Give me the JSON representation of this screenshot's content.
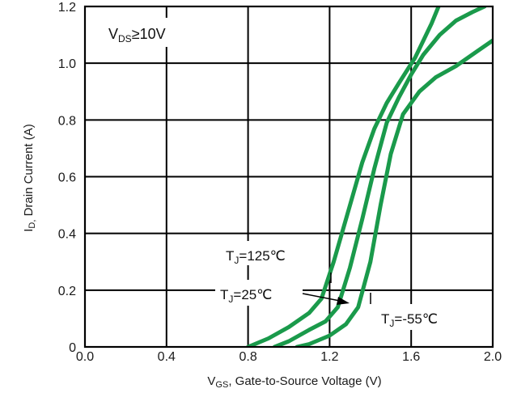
{
  "chart_data": {
    "type": "line",
    "condition": {
      "main": "V",
      "sub": "DS",
      "rest": "≥10V"
    },
    "xlabel": {
      "main": "V",
      "sub": "GS",
      "rest": ", Gate-to-Source Voltage (V)"
    },
    "ylabel": {
      "main": "I",
      "sub": "D,",
      "rest": " Drain Current (A)"
    },
    "xlim": [
      0.0,
      2.0
    ],
    "ylim": [
      0.0,
      1.2
    ],
    "xticks": [
      "0.0",
      "0.4",
      "0.8",
      "1.2",
      "1.6",
      "2.0"
    ],
    "yticks": [
      "0",
      "0.2",
      "0.4",
      "0.6",
      "0.8",
      "1.0",
      "1.2"
    ],
    "grid": true,
    "line_color": "#1a9a4b",
    "series": [
      {
        "name": "T_J=125℃",
        "x": [
          0.8,
          0.9,
          1.0,
          1.1,
          1.16,
          1.22,
          1.28,
          1.36,
          1.42,
          1.48,
          1.54,
          1.62,
          1.7,
          1.74
        ],
        "y": [
          0.0,
          0.03,
          0.07,
          0.12,
          0.17,
          0.3,
          0.45,
          0.65,
          0.77,
          0.86,
          0.93,
          1.02,
          1.14,
          1.21
        ]
      },
      {
        "name": "T_J=25℃",
        "x": [
          0.93,
          1.0,
          1.1,
          1.18,
          1.24,
          1.3,
          1.36,
          1.42,
          1.48,
          1.54,
          1.6,
          1.66,
          1.74,
          1.82,
          1.9,
          1.96
        ],
        "y": [
          0.0,
          0.02,
          0.06,
          0.09,
          0.14,
          0.28,
          0.45,
          0.63,
          0.79,
          0.88,
          0.96,
          1.03,
          1.1,
          1.15,
          1.18,
          1.2
        ]
      },
      {
        "name": "T_J=-55℃",
        "x": [
          1.04,
          1.1,
          1.2,
          1.28,
          1.34,
          1.4,
          1.45,
          1.5,
          1.56,
          1.64,
          1.72,
          1.82,
          1.92,
          2.0
        ],
        "y": [
          0.0,
          0.01,
          0.04,
          0.08,
          0.14,
          0.3,
          0.5,
          0.68,
          0.82,
          0.9,
          0.95,
          0.99,
          1.04,
          1.08
        ]
      }
    ],
    "annotations": [
      {
        "main": "T",
        "sub": "J",
        "rest": "=125℃"
      },
      {
        "main": "T",
        "sub": "J",
        "rest": "=25℃"
      },
      {
        "main": "T",
        "sub": "J",
        "rest": "=-55℃"
      }
    ]
  }
}
